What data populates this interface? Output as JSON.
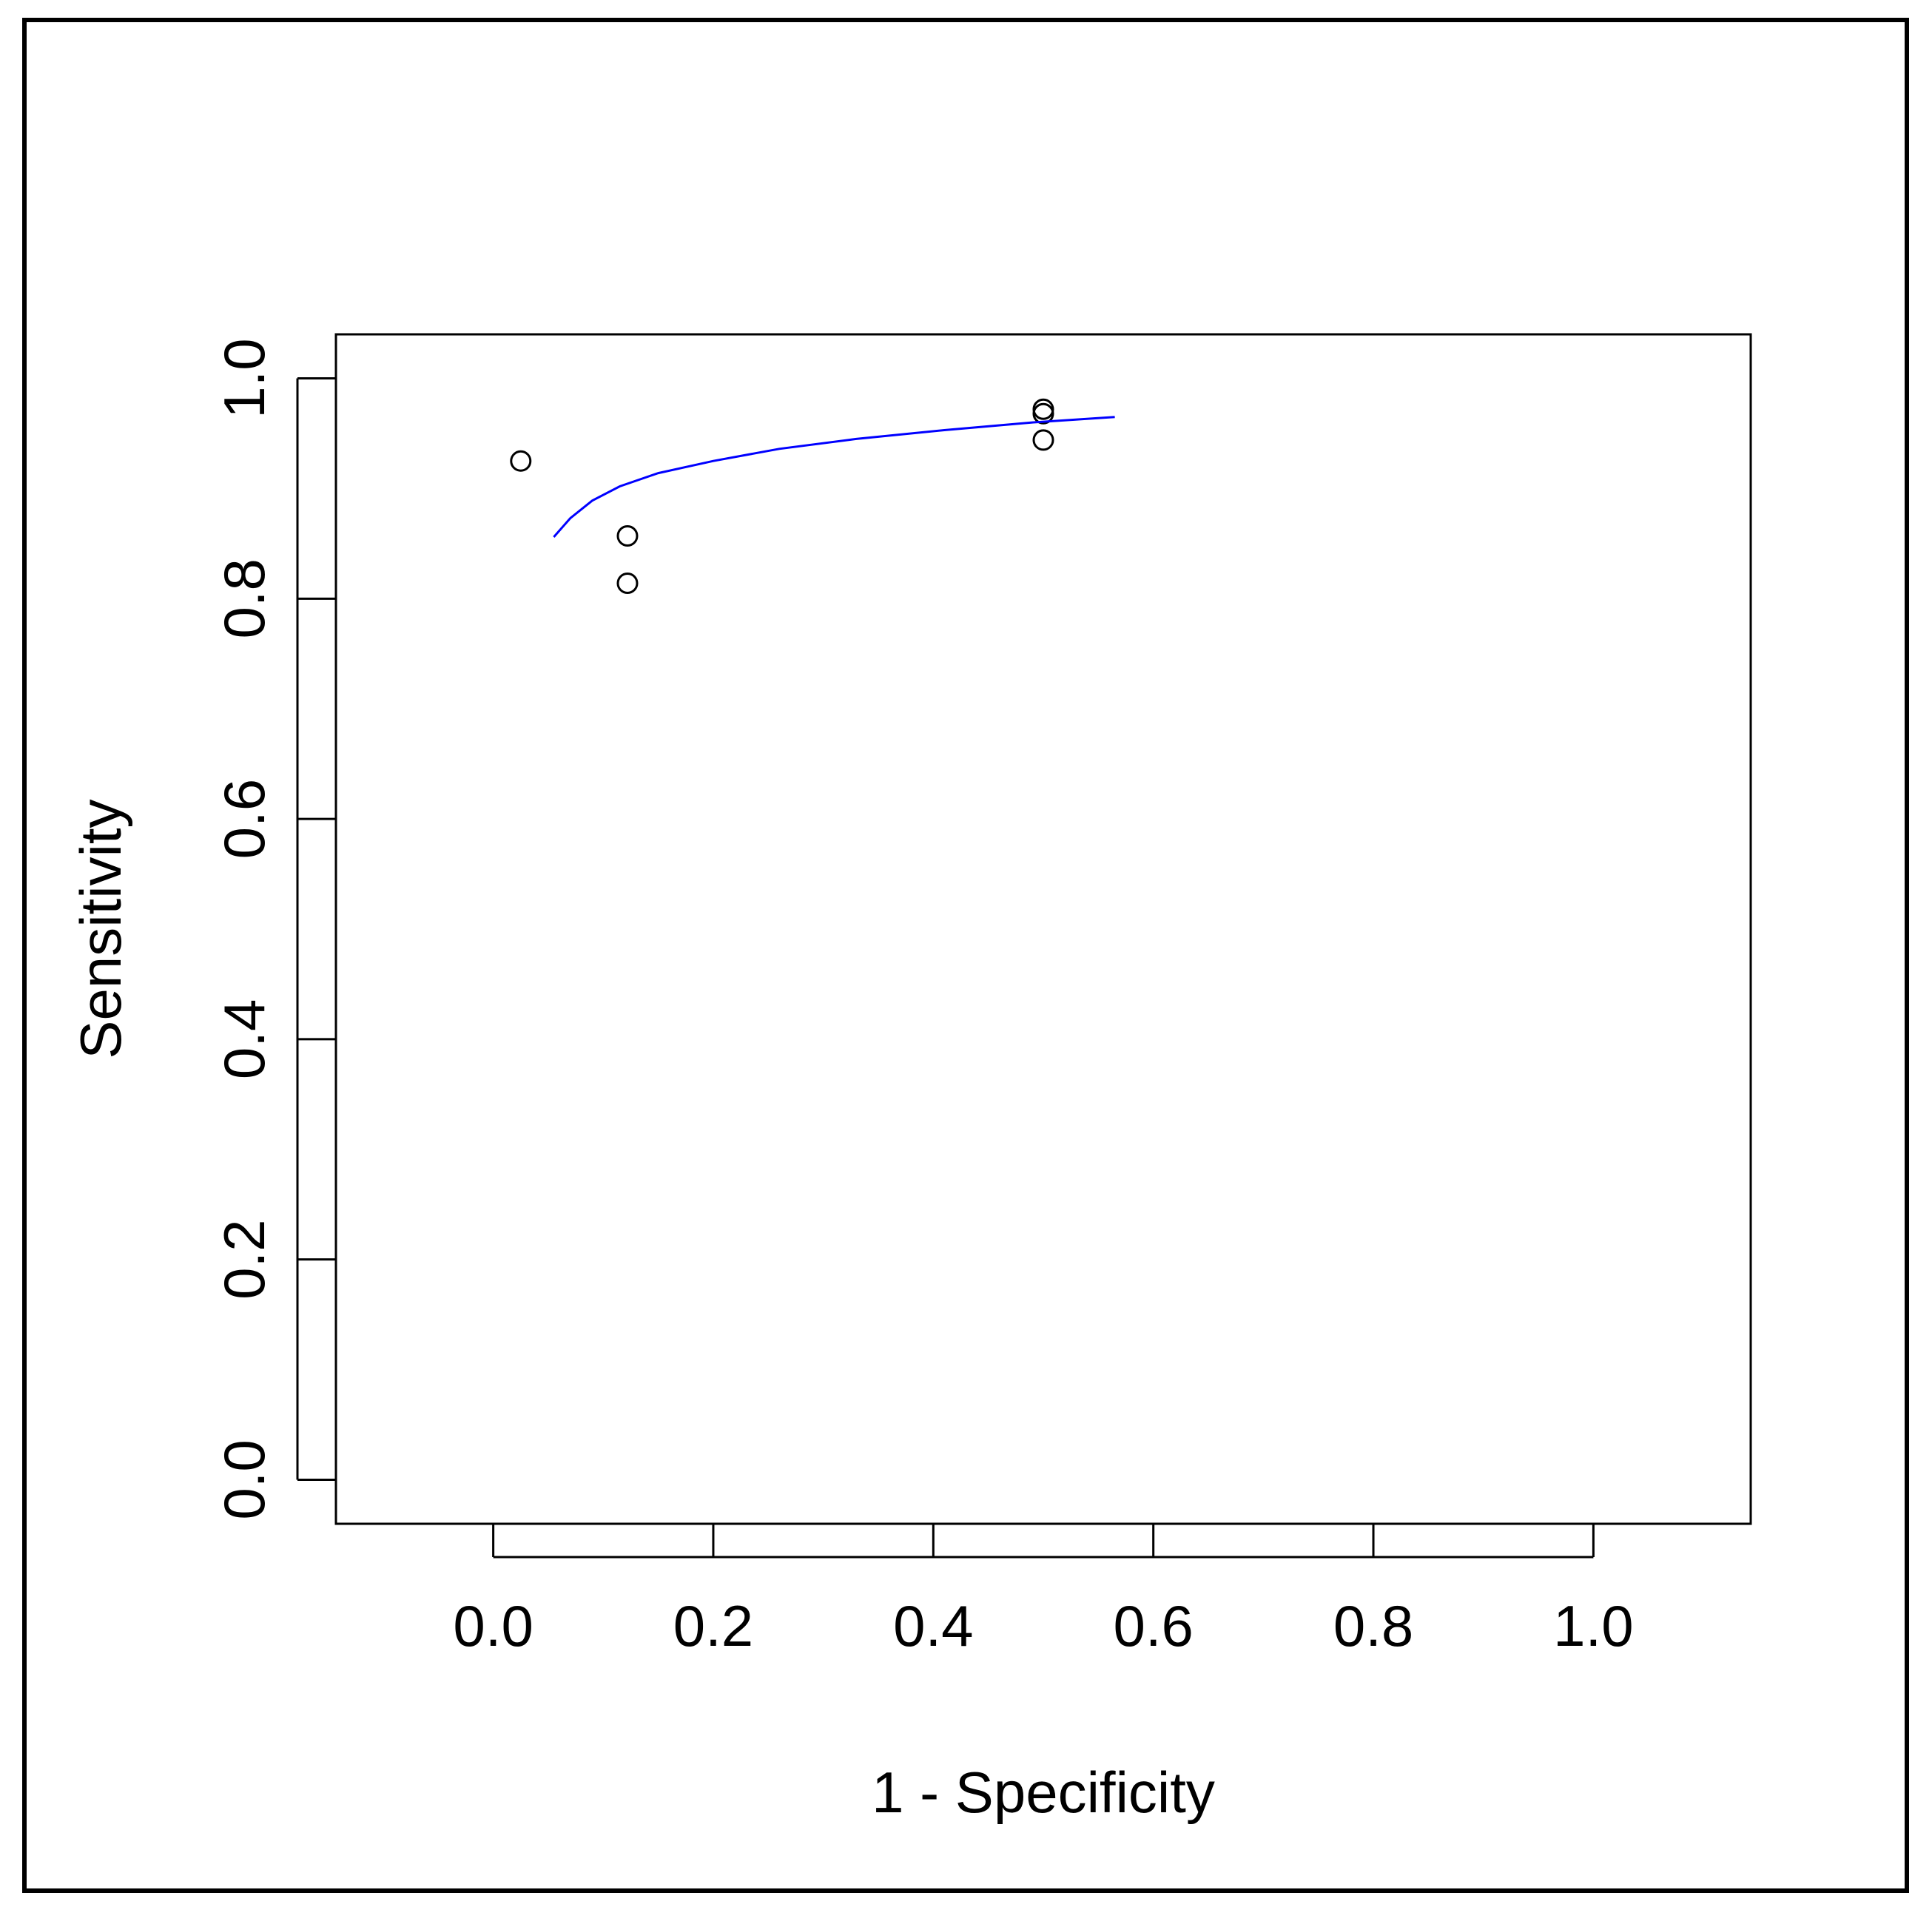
{
  "chart_data": {
    "type": "scatter",
    "title": "",
    "xlabel": "1 - Specificity",
    "ylabel": "Sensitivity",
    "xlim": [
      -0.143,
      1.143
    ],
    "ylim": [
      -0.04,
      1.04
    ],
    "xticks": [
      0.0,
      0.2,
      0.4,
      0.6,
      0.8,
      1.0
    ],
    "xtick_labels": [
      "0.0",
      "0.2",
      "0.4",
      "0.6",
      "0.8",
      "1.0"
    ],
    "yticks": [
      0.0,
      0.2,
      0.4,
      0.6,
      0.8,
      1.0
    ],
    "ytick_labels": [
      "0.0",
      "0.2",
      "0.4",
      "0.6",
      "0.8",
      "1.0"
    ],
    "grid": false,
    "series": [
      {
        "kind": "points",
        "marker": "open-circle",
        "color": "#000000",
        "points": [
          {
            "x": 0.025,
            "y": 0.925
          },
          {
            "x": 0.122,
            "y": 0.857
          },
          {
            "x": 0.122,
            "y": 0.814
          },
          {
            "x": 0.5,
            "y": 0.972
          },
          {
            "x": 0.5,
            "y": 0.968
          },
          {
            "x": 0.5,
            "y": 0.944
          }
        ]
      },
      {
        "kind": "curve",
        "color": "#0000ff",
        "points": [
          {
            "x": 0.055,
            "y": 0.856
          },
          {
            "x": 0.07,
            "y": 0.873
          },
          {
            "x": 0.09,
            "y": 0.889
          },
          {
            "x": 0.115,
            "y": 0.902
          },
          {
            "x": 0.15,
            "y": 0.914
          },
          {
            "x": 0.2,
            "y": 0.925
          },
          {
            "x": 0.26,
            "y": 0.936
          },
          {
            "x": 0.33,
            "y": 0.945
          },
          {
            "x": 0.41,
            "y": 0.953
          },
          {
            "x": 0.49,
            "y": 0.96
          },
          {
            "x": 0.565,
            "y": 0.965
          }
        ]
      }
    ]
  }
}
